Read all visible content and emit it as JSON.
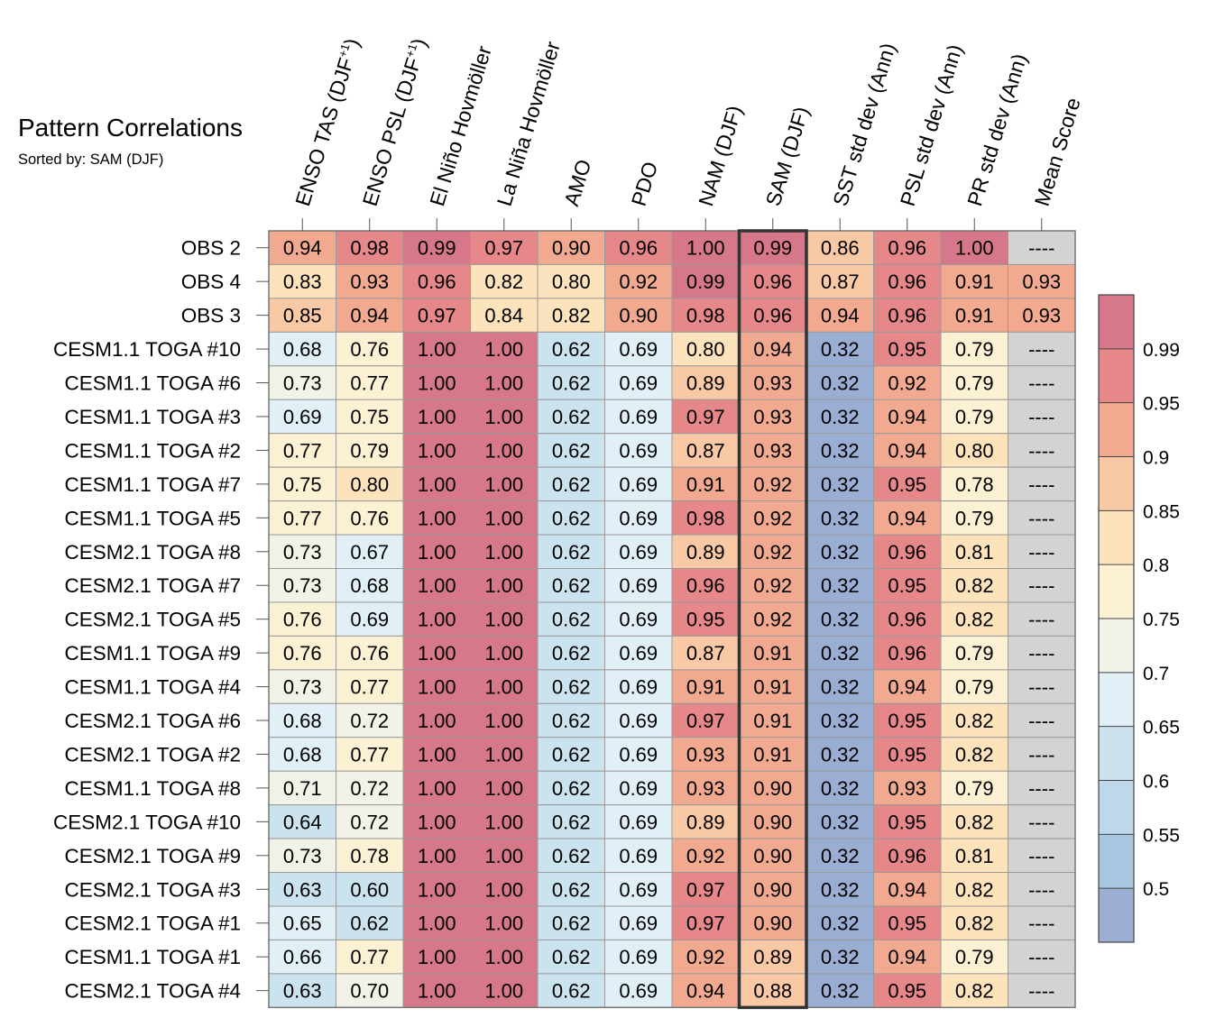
{
  "chart_data": {
    "type": "heatmap",
    "title": "Pattern Correlations",
    "subtitle": "Sorted by: SAM (DJF)",
    "columns": [
      "ENSO TAS (DJF+1)",
      "ENSO PSL (DJF+1)",
      "El Niño Hovmöller",
      "La Niña Hovmöller",
      "AMO",
      "PDO",
      "NAM (DJF)",
      "SAM (DJF)",
      "SST std dev (Ann)",
      "PSL std dev (Ann)",
      "PR std dev (Ann)",
      "Mean Score"
    ],
    "highlighted_column": "SAM (DJF)",
    "missing_label": "----",
    "rows": [
      {
        "name": "OBS 2",
        "values": [
          0.94,
          0.98,
          0.99,
          0.97,
          0.9,
          0.96,
          1.0,
          0.99,
          0.86,
          0.96,
          1.0,
          null
        ]
      },
      {
        "name": "OBS 4",
        "values": [
          0.83,
          0.93,
          0.96,
          0.82,
          0.8,
          0.92,
          0.99,
          0.96,
          0.87,
          0.96,
          0.91,
          0.93
        ]
      },
      {
        "name": "OBS 3",
        "values": [
          0.85,
          0.94,
          0.97,
          0.84,
          0.82,
          0.9,
          0.98,
          0.96,
          0.94,
          0.96,
          0.91,
          0.93
        ]
      },
      {
        "name": "CESM1.1 TOGA #10",
        "values": [
          0.68,
          0.76,
          1.0,
          1.0,
          0.62,
          0.69,
          0.8,
          0.94,
          0.32,
          0.95,
          0.79,
          null
        ]
      },
      {
        "name": "CESM1.1 TOGA #6",
        "values": [
          0.73,
          0.77,
          1.0,
          1.0,
          0.62,
          0.69,
          0.89,
          0.93,
          0.32,
          0.92,
          0.79,
          null
        ]
      },
      {
        "name": "CESM1.1 TOGA #3",
        "values": [
          0.69,
          0.75,
          1.0,
          1.0,
          0.62,
          0.69,
          0.97,
          0.93,
          0.32,
          0.94,
          0.79,
          null
        ]
      },
      {
        "name": "CESM1.1 TOGA #2",
        "values": [
          0.77,
          0.79,
          1.0,
          1.0,
          0.62,
          0.69,
          0.87,
          0.93,
          0.32,
          0.94,
          0.8,
          null
        ]
      },
      {
        "name": "CESM1.1 TOGA #7",
        "values": [
          0.75,
          0.8,
          1.0,
          1.0,
          0.62,
          0.69,
          0.91,
          0.92,
          0.32,
          0.95,
          0.78,
          null
        ]
      },
      {
        "name": "CESM1.1 TOGA #5",
        "values": [
          0.77,
          0.76,
          1.0,
          1.0,
          0.62,
          0.69,
          0.98,
          0.92,
          0.32,
          0.94,
          0.79,
          null
        ]
      },
      {
        "name": "CESM2.1 TOGA #8",
        "values": [
          0.73,
          0.67,
          1.0,
          1.0,
          0.62,
          0.69,
          0.89,
          0.92,
          0.32,
          0.96,
          0.81,
          null
        ]
      },
      {
        "name": "CESM2.1 TOGA #7",
        "values": [
          0.73,
          0.68,
          1.0,
          1.0,
          0.62,
          0.69,
          0.96,
          0.92,
          0.32,
          0.95,
          0.82,
          null
        ]
      },
      {
        "name": "CESM2.1 TOGA #5",
        "values": [
          0.76,
          0.69,
          1.0,
          1.0,
          0.62,
          0.69,
          0.95,
          0.92,
          0.32,
          0.96,
          0.82,
          null
        ]
      },
      {
        "name": "CESM1.1 TOGA #9",
        "values": [
          0.76,
          0.76,
          1.0,
          1.0,
          0.62,
          0.69,
          0.87,
          0.91,
          0.32,
          0.96,
          0.79,
          null
        ]
      },
      {
        "name": "CESM1.1 TOGA #4",
        "values": [
          0.73,
          0.77,
          1.0,
          1.0,
          0.62,
          0.69,
          0.91,
          0.91,
          0.32,
          0.94,
          0.79,
          null
        ]
      },
      {
        "name": "CESM2.1 TOGA #6",
        "values": [
          0.68,
          0.72,
          1.0,
          1.0,
          0.62,
          0.69,
          0.97,
          0.91,
          0.32,
          0.95,
          0.82,
          null
        ]
      },
      {
        "name": "CESM2.1 TOGA #2",
        "values": [
          0.68,
          0.77,
          1.0,
          1.0,
          0.62,
          0.69,
          0.93,
          0.91,
          0.32,
          0.95,
          0.82,
          null
        ]
      },
      {
        "name": "CESM1.1 TOGA #8",
        "values": [
          0.71,
          0.72,
          1.0,
          1.0,
          0.62,
          0.69,
          0.93,
          0.9,
          0.32,
          0.93,
          0.79,
          null
        ]
      },
      {
        "name": "CESM2.1 TOGA #10",
        "values": [
          0.64,
          0.72,
          1.0,
          1.0,
          0.62,
          0.69,
          0.89,
          0.9,
          0.32,
          0.95,
          0.82,
          null
        ]
      },
      {
        "name": "CESM2.1 TOGA #9",
        "values": [
          0.73,
          0.78,
          1.0,
          1.0,
          0.62,
          0.69,
          0.92,
          0.9,
          0.32,
          0.96,
          0.81,
          null
        ]
      },
      {
        "name": "CESM2.1 TOGA #3",
        "values": [
          0.63,
          0.6,
          1.0,
          1.0,
          0.62,
          0.69,
          0.97,
          0.9,
          0.32,
          0.94,
          0.82,
          null
        ]
      },
      {
        "name": "CESM2.1 TOGA #1",
        "values": [
          0.65,
          0.62,
          1.0,
          1.0,
          0.62,
          0.69,
          0.97,
          0.9,
          0.32,
          0.95,
          0.82,
          null
        ]
      },
      {
        "name": "CESM1.1 TOGA #1",
        "values": [
          0.66,
          0.77,
          1.0,
          1.0,
          0.62,
          0.69,
          0.92,
          0.89,
          0.32,
          0.94,
          0.79,
          null
        ]
      },
      {
        "name": "CESM2.1 TOGA #4",
        "values": [
          0.63,
          0.7,
          1.0,
          1.0,
          0.62,
          0.69,
          0.94,
          0.88,
          0.32,
          0.95,
          0.82,
          null
        ]
      }
    ],
    "colorbar": {
      "boundaries": [
        0.5,
        0.55,
        0.6,
        0.65,
        0.7,
        0.75,
        0.8,
        0.85,
        0.9,
        0.95,
        0.99
      ],
      "tick_labels": [
        "0.5",
        "0.55",
        "0.6",
        "0.65",
        "0.7",
        "0.75",
        "0.8",
        "0.85",
        "0.9",
        "0.95",
        "0.99"
      ],
      "colors": [
        "#9aaed3",
        "#a9c6e0",
        "#bcd8ea",
        "#cbe3ef",
        "#e1eff6",
        "#f1f2e8",
        "#fdf1d3",
        "#fde3bc",
        "#f9c9a5",
        "#f1aa90",
        "#e6878a",
        "#d6788a"
      ],
      "missing_color": "#d3d3d3"
    }
  }
}
